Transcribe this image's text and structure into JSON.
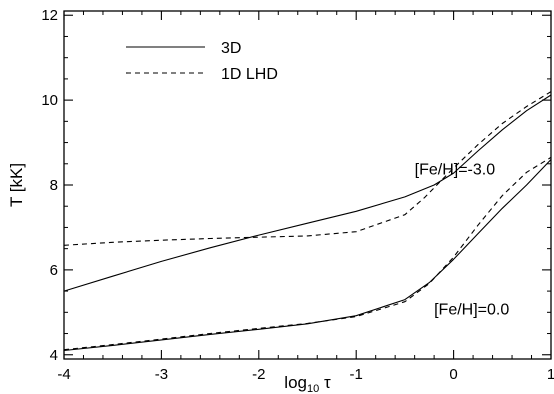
{
  "chart_data": {
    "type": "line",
    "xlabel": "log10 τ",
    "xlabel_parts": {
      "base": "log",
      "sub": "10",
      "var": " τ"
    },
    "ylabel": "T [kK]",
    "xlim": [
      -4,
      1
    ],
    "ylim": [
      3.9,
      12.1
    ],
    "xticks": [
      -4,
      -3,
      -2,
      -1,
      0,
      1
    ],
    "xtick_labels": [
      "-4",
      "-3",
      "-2",
      "-1",
      "0",
      "1"
    ],
    "yticks": [
      4,
      6,
      8,
      10,
      12
    ],
    "ytick_labels": [
      "4",
      "6",
      "8",
      "10",
      "12"
    ],
    "grid": false,
    "legend": {
      "position": "top-left",
      "entries": [
        {
          "label": "3D",
          "style": "solid"
        },
        {
          "label": "1D LHD",
          "style": "dashed"
        }
      ]
    },
    "annotations": [
      {
        "text": "[Fe/H]=-3.0",
        "x": -0.4,
        "y": 8.25
      },
      {
        "text": "[Fe/H]=0.0",
        "x": -0.2,
        "y": 4.95
      }
    ],
    "series": [
      {
        "group": "[Fe/H]=-3.0",
        "style": "solid",
        "x": [
          -4.0,
          -3.5,
          -3.0,
          -2.5,
          -2.0,
          -1.5,
          -1.0,
          -0.5,
          -0.2,
          0.0,
          0.25,
          0.5,
          0.75,
          1.0
        ],
        "y": [
          5.5,
          5.85,
          6.2,
          6.52,
          6.82,
          7.1,
          7.38,
          7.72,
          8.0,
          8.28,
          8.8,
          9.3,
          9.75,
          10.12
        ]
      },
      {
        "group": "[Fe/H]=-3.0",
        "style": "dashed",
        "x": [
          -4.0,
          -3.5,
          -3.0,
          -2.5,
          -2.0,
          -1.5,
          -1.0,
          -0.5,
          -0.3,
          0.0,
          0.25,
          0.5,
          0.75,
          1.0
        ],
        "y": [
          6.58,
          6.65,
          6.7,
          6.74,
          6.77,
          6.8,
          6.9,
          7.3,
          7.7,
          8.4,
          8.95,
          9.45,
          9.85,
          10.2
        ]
      },
      {
        "group": "[Fe/H]=0.0",
        "style": "solid",
        "x": [
          -4.0,
          -3.5,
          -3.0,
          -2.5,
          -2.0,
          -1.5,
          -1.0,
          -0.5,
          -0.25,
          0.0,
          0.25,
          0.5,
          0.75,
          1.0
        ],
        "y": [
          4.1,
          4.22,
          4.35,
          4.48,
          4.6,
          4.73,
          4.92,
          5.3,
          5.7,
          6.25,
          6.85,
          7.45,
          8.0,
          8.6
        ]
      },
      {
        "group": "[Fe/H]=0.0",
        "style": "dashed",
        "x": [
          -4.0,
          -3.5,
          -3.0,
          -2.5,
          -2.0,
          -1.5,
          -1.0,
          -0.5,
          -0.25,
          0.0,
          0.25,
          0.5,
          0.75,
          1.0
        ],
        "y": [
          4.12,
          4.24,
          4.37,
          4.5,
          4.62,
          4.74,
          4.9,
          5.25,
          5.68,
          6.3,
          7.05,
          7.75,
          8.3,
          8.65
        ]
      }
    ]
  }
}
